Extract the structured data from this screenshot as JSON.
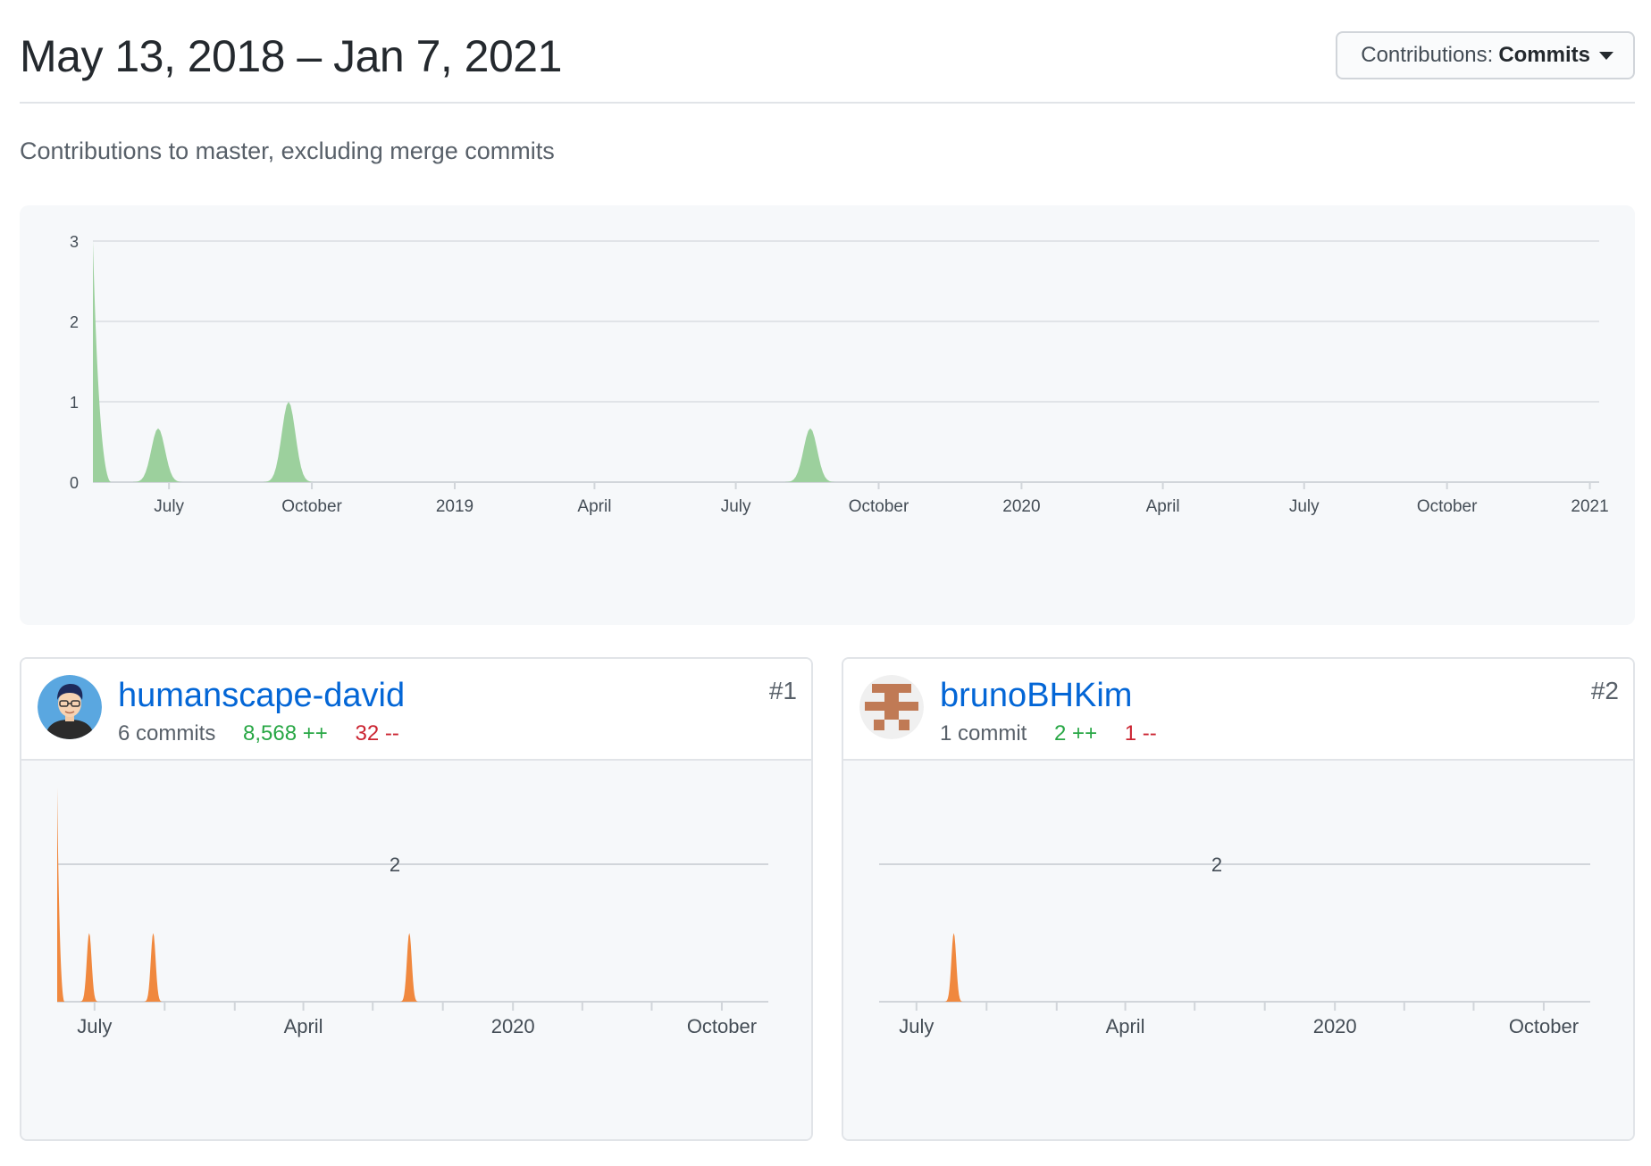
{
  "header": {
    "date_range": "May 13, 2018 – Jan 7, 2021",
    "contrib_label": "Contributions:",
    "contrib_value": "Commits"
  },
  "subtitle": "Contributions to master, excluding merge commits",
  "colors": {
    "main_area": "#9cd09d",
    "contributor_area": "#f0883e",
    "link": "#0366d6",
    "additions": "#28a745",
    "deletions": "#cb2431"
  },
  "chart_data": [
    {
      "type": "area",
      "y_ticks": [
        "0",
        "1",
        "2",
        "3"
      ],
      "ylim": [
        0,
        3
      ],
      "x_tick_labels": [
        "July",
        "October",
        "2019",
        "April",
        "July",
        "October",
        "2020",
        "April",
        "July",
        "October",
        "2021"
      ],
      "peaks": [
        {
          "date": "2018-05-13",
          "value": 3
        },
        {
          "date": "2018-06-24",
          "value": 0.67
        },
        {
          "date": "2018-09-16",
          "value": 1
        },
        {
          "date": "2019-08-18",
          "value": 0.67
        }
      ],
      "grid": true
    },
    {
      "type": "area",
      "contributor": "humanscape-david",
      "y_ticks": [
        "2"
      ],
      "x_tick_labels": [
        "July",
        "April",
        "2020",
        "October"
      ],
      "peaks": [
        {
          "date": "2018-05-13",
          "value": 3
        },
        {
          "date": "2018-06-24",
          "value": 1
        },
        {
          "date": "2018-09-16",
          "value": 1
        },
        {
          "date": "2019-08-18",
          "value": 1
        }
      ],
      "grid": true
    },
    {
      "type": "area",
      "contributor": "brunoBHKim",
      "y_ticks": [
        "2"
      ],
      "x_tick_labels": [
        "July",
        "April",
        "2020",
        "October"
      ],
      "peaks": [
        {
          "date": "2018-08-19",
          "value": 1
        }
      ],
      "grid": true
    }
  ],
  "contributors": [
    {
      "username": "humanscape-david",
      "commits": "6 commits",
      "additions": "8,568 ++",
      "deletions": "32 --",
      "rank": "#1"
    },
    {
      "username": "brunoBHKim",
      "commits": "1 commit",
      "additions": "2 ++",
      "deletions": "1 --",
      "rank": "#2"
    }
  ]
}
